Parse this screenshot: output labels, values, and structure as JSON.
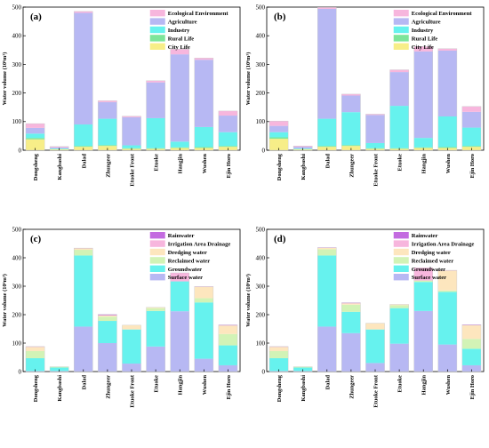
{
  "chart_data": [
    {
      "type": "bar",
      "panel": "(a)",
      "ylabel": "Water volume (10⁶m³)",
      "ylim": [
        0,
        500
      ],
      "yticks": [
        0,
        100,
        200,
        300,
        400,
        500
      ],
      "categories": [
        "Dongsheng",
        "Kangbashi",
        "Dalad",
        "Zhungeer",
        "Etuoke Front",
        "Etuoke",
        "Hangjin",
        "Wushen",
        "Ejin Horo"
      ],
      "legend_position": "top-right",
      "series": [
        {
          "name": "City Life",
          "color": "#f7ee88",
          "values": [
            38,
            3,
            12,
            15,
            5,
            5,
            8,
            8,
            12
          ]
        },
        {
          "name": "Rural Life",
          "color": "#7de59a",
          "values": [
            5,
            1,
            3,
            3,
            2,
            2,
            2,
            3,
            3
          ]
        },
        {
          "name": "Industry",
          "color": "#66f2ee",
          "values": [
            15,
            2,
            75,
            92,
            10,
            105,
            20,
            70,
            48
          ]
        },
        {
          "name": "Agriculture",
          "color": "#b7b8f3",
          "values": [
            20,
            4,
            390,
            58,
            98,
            125,
            305,
            235,
            58
          ]
        },
        {
          "name": "Ecological Environment",
          "color": "#f7b6dd",
          "values": [
            15,
            3,
            5,
            5,
            4,
            6,
            18,
            6,
            16
          ]
        }
      ]
    },
    {
      "type": "bar",
      "panel": "(b)",
      "ylabel": "Water volume (10⁶m³)",
      "ylim": [
        0,
        500
      ],
      "yticks": [
        0,
        100,
        200,
        300,
        400,
        500
      ],
      "categories": [
        "Dongsheng",
        "Kangbashi",
        "Dalad",
        "Zhungeer",
        "Etuoke Front",
        "Etuoke",
        "Hangjin",
        "Wushen",
        "Ejin Horo"
      ],
      "legend_position": "top-right",
      "series": [
        {
          "name": "City Life",
          "color": "#f7ee88",
          "values": [
            40,
            3,
            12,
            15,
            5,
            5,
            8,
            8,
            12
          ]
        },
        {
          "name": "Rural Life",
          "color": "#7de59a",
          "values": [
            5,
            1,
            3,
            3,
            2,
            2,
            2,
            3,
            3
          ]
        },
        {
          "name": "Industry",
          "color": "#66f2ee",
          "values": [
            18,
            2,
            95,
            115,
            18,
            148,
            33,
            107,
            64
          ]
        },
        {
          "name": "Agriculture",
          "color": "#b7b8f3",
          "values": [
            22,
            6,
            384,
            58,
            98,
            118,
            302,
            230,
            55
          ]
        },
        {
          "name": "Ecological Environment",
          "color": "#f7b6dd",
          "values": [
            17,
            3,
            5,
            5,
            3,
            8,
            17,
            7,
            19
          ]
        }
      ]
    },
    {
      "type": "bar",
      "panel": "(c)",
      "ylabel": "Water volume (10⁶m³)",
      "ylim": [
        0,
        500
      ],
      "yticks": [
        0,
        100,
        200,
        300,
        400,
        500
      ],
      "categories": [
        "Dongsheng",
        "Kangbashi",
        "Dalad",
        "Zhungeer",
        "Etuoke Front",
        "Etuoke",
        "Hangjin",
        "Wushen",
        "Ejin Horo"
      ],
      "legend_position": "top-right",
      "series": [
        {
          "name": "Surface water",
          "color": "#b7b8f3",
          "values": [
            2,
            2,
            158,
            100,
            28,
            88,
            212,
            45,
            22
          ]
        },
        {
          "name": "Groundwater",
          "color": "#66f2ee",
          "values": [
            45,
            12,
            250,
            78,
            120,
            125,
            105,
            198,
            70
          ]
        },
        {
          "name": "Reclaimed water",
          "color": "#d2f3b6",
          "values": [
            25,
            3,
            20,
            15,
            0,
            10,
            0,
            15,
            40
          ]
        },
        {
          "name": "Dredging water",
          "color": "#fde6be",
          "values": [
            15,
            0,
            5,
            5,
            15,
            3,
            0,
            40,
            30
          ]
        },
        {
          "name": "Irrigation Area Drainage",
          "color": "#f7b6dd",
          "values": [
            0,
            0,
            0,
            0,
            0,
            0,
            30,
            0,
            0
          ]
        },
        {
          "name": "Rainwater",
          "color": "#c36be0",
          "values": [
            1,
            0,
            1,
            3,
            0,
            0,
            0,
            1,
            2
          ]
        }
      ]
    },
    {
      "type": "bar",
      "panel": "(d)",
      "ylabel": "Water volume (10⁶m³)",
      "ylim": [
        0,
        500
      ],
      "yticks": [
        0,
        100,
        200,
        300,
        400,
        500
      ],
      "categories": [
        "Dongsheng",
        "Kangbashi",
        "Dalad",
        "Zhungeer",
        "Etuoke Front",
        "Etuoke",
        "Hangjin",
        "Wushen",
        "Ejin Horo"
      ],
      "legend_position": "top-right",
      "series": [
        {
          "name": "Surface water",
          "color": "#b7b8f3",
          "values": [
            2,
            2,
            158,
            135,
            30,
            98,
            213,
            95,
            22
          ]
        },
        {
          "name": "Groundwater",
          "color": "#66f2ee",
          "values": [
            45,
            12,
            250,
            75,
            118,
            125,
            102,
            185,
            58
          ]
        },
        {
          "name": "Reclaimed water",
          "color": "#d2f3b6",
          "values": [
            25,
            3,
            22,
            25,
            0,
            10,
            5,
            5,
            35
          ]
        },
        {
          "name": "Dredging water",
          "color": "#fde6be",
          "values": [
            15,
            0,
            5,
            5,
            22,
            3,
            0,
            70,
            48
          ]
        },
        {
          "name": "Irrigation Area Drainage",
          "color": "#f7b6dd",
          "values": [
            0,
            0,
            0,
            0,
            0,
            0,
            45,
            0,
            0
          ]
        },
        {
          "name": "Rainwater",
          "color": "#c36be0",
          "values": [
            1,
            0,
            1,
            2,
            0,
            0,
            0,
            1,
            2
          ]
        }
      ]
    }
  ]
}
